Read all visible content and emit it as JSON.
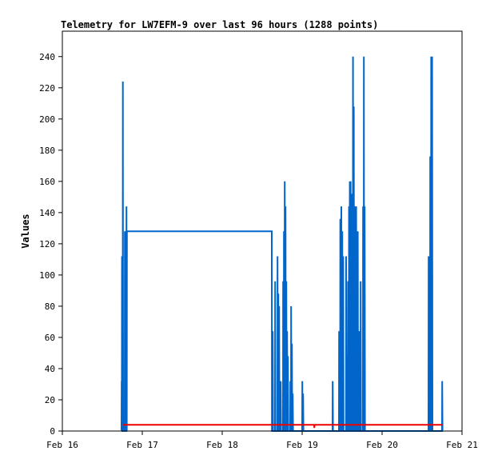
{
  "chart_data": {
    "type": "line",
    "title": "Telemetry for LW7EFM-9 over last 96 hours (1288 points)",
    "xlabel": "",
    "ylabel": "Values",
    "x_unit": "day",
    "xlim": [
      16.0,
      21.0
    ],
    "ylim": [
      0,
      255
    ],
    "x_ticks": [
      {
        "x": 16,
        "label": "Feb 16"
      },
      {
        "x": 17,
        "label": "Feb 17"
      },
      {
        "x": 18,
        "label": "Feb 18"
      },
      {
        "x": 19,
        "label": "Feb 19"
      },
      {
        "x": 20,
        "label": "Feb 20"
      },
      {
        "x": 21,
        "label": "Feb 21"
      }
    ],
    "y_ticks": [
      0,
      20,
      40,
      60,
      80,
      100,
      120,
      140,
      160,
      180,
      200,
      220,
      240
    ],
    "grid": false,
    "legend": "none",
    "series": [
      {
        "color": "#0066cc",
        "points": [
          [
            16.74,
            0
          ],
          [
            16.742,
            32
          ],
          [
            16.744,
            0
          ],
          [
            16.746,
            112
          ],
          [
            16.75,
            0
          ],
          [
            16.755,
            0
          ],
          [
            16.757,
            224
          ],
          [
            16.76,
            0
          ],
          [
            16.78,
            0
          ],
          [
            16.782,
            128
          ],
          [
            16.79,
            0
          ],
          [
            16.8,
            0
          ],
          [
            16.802,
            144
          ],
          [
            16.806,
            0
          ],
          [
            16.808,
            128
          ],
          [
            18.62,
            128
          ],
          [
            18.622,
            0
          ],
          [
            18.63,
            0
          ],
          [
            18.632,
            64
          ],
          [
            18.636,
            0
          ],
          [
            18.66,
            0
          ],
          [
            18.662,
            96
          ],
          [
            18.666,
            0
          ],
          [
            18.69,
            0
          ],
          [
            18.692,
            112
          ],
          [
            18.696,
            0
          ],
          [
            18.7,
            0
          ],
          [
            18.702,
            88
          ],
          [
            18.706,
            0
          ],
          [
            18.71,
            0
          ],
          [
            18.712,
            80
          ],
          [
            18.716,
            0
          ],
          [
            18.72,
            0
          ],
          [
            18.722,
            24
          ],
          [
            18.726,
            0
          ],
          [
            18.73,
            0
          ],
          [
            18.732,
            32
          ],
          [
            18.736,
            0
          ],
          [
            18.76,
            0
          ],
          [
            18.762,
            96
          ],
          [
            18.766,
            0
          ],
          [
            18.77,
            0
          ],
          [
            18.772,
            128
          ],
          [
            18.776,
            0
          ],
          [
            18.78,
            0
          ],
          [
            18.782,
            160
          ],
          [
            18.786,
            0
          ],
          [
            18.79,
            0
          ],
          [
            18.792,
            144
          ],
          [
            18.796,
            0
          ],
          [
            18.8,
            0
          ],
          [
            18.802,
            96
          ],
          [
            18.806,
            0
          ],
          [
            18.81,
            0
          ],
          [
            18.812,
            64
          ],
          [
            18.816,
            0
          ],
          [
            18.82,
            0
          ],
          [
            18.822,
            48
          ],
          [
            18.826,
            0
          ],
          [
            18.85,
            0
          ],
          [
            18.852,
            32
          ],
          [
            18.856,
            0
          ],
          [
            18.86,
            0
          ],
          [
            18.862,
            80
          ],
          [
            18.866,
            0
          ],
          [
            18.87,
            0
          ],
          [
            18.872,
            56
          ],
          [
            18.876,
            0
          ],
          [
            18.88,
            0
          ],
          [
            18.882,
            24
          ],
          [
            18.886,
            0
          ],
          [
            19.0,
            0
          ],
          [
            19.002,
            32
          ],
          [
            19.006,
            0
          ],
          [
            19.01,
            0
          ],
          [
            19.012,
            24
          ],
          [
            19.016,
            0
          ],
          [
            19.38,
            0
          ],
          [
            19.382,
            32
          ],
          [
            19.386,
            0
          ],
          [
            19.46,
            0
          ],
          [
            19.462,
            64
          ],
          [
            19.466,
            0
          ],
          [
            19.475,
            0
          ],
          [
            19.477,
            136
          ],
          [
            19.481,
            0
          ],
          [
            19.488,
            0
          ],
          [
            19.49,
            144
          ],
          [
            19.494,
            0
          ],
          [
            19.5,
            0
          ],
          [
            19.502,
            128
          ],
          [
            19.506,
            0
          ],
          [
            19.512,
            0
          ],
          [
            19.514,
            112
          ],
          [
            19.518,
            0
          ],
          [
            19.548,
            0
          ],
          [
            19.55,
            112
          ],
          [
            19.554,
            0
          ],
          [
            19.56,
            0
          ],
          [
            19.562,
            48
          ],
          [
            19.566,
            0
          ],
          [
            19.572,
            0
          ],
          [
            19.574,
            96
          ],
          [
            19.578,
            0
          ],
          [
            19.584,
            0
          ],
          [
            19.586,
            144
          ],
          [
            19.59,
            0
          ],
          [
            19.594,
            0
          ],
          [
            19.596,
            160
          ],
          [
            19.6,
            0
          ],
          [
            19.604,
            0
          ],
          [
            19.606,
            160
          ],
          [
            19.61,
            0
          ],
          [
            19.614,
            0
          ],
          [
            19.616,
            136
          ],
          [
            19.62,
            0
          ],
          [
            19.624,
            0
          ],
          [
            19.626,
            152
          ],
          [
            19.63,
            0
          ],
          [
            19.634,
            0
          ],
          [
            19.636,
            240
          ],
          [
            19.64,
            0
          ],
          [
            19.644,
            0
          ],
          [
            19.646,
            208
          ],
          [
            19.65,
            0
          ],
          [
            19.654,
            0
          ],
          [
            19.656,
            144
          ],
          [
            19.66,
            0
          ],
          [
            19.664,
            0
          ],
          [
            19.666,
            128
          ],
          [
            19.67,
            0
          ],
          [
            19.674,
            0
          ],
          [
            19.676,
            144
          ],
          [
            19.68,
            0
          ],
          [
            19.684,
            0
          ],
          [
            19.686,
            112
          ],
          [
            19.69,
            0
          ],
          [
            19.694,
            0
          ],
          [
            19.696,
            128
          ],
          [
            19.7,
            0
          ],
          [
            19.71,
            0
          ],
          [
            19.712,
            64
          ],
          [
            19.716,
            0
          ],
          [
            19.72,
            0
          ],
          [
            19.722,
            32
          ],
          [
            19.726,
            0
          ],
          [
            19.73,
            0
          ],
          [
            19.732,
            96
          ],
          [
            19.736,
            0
          ],
          [
            19.76,
            0
          ],
          [
            19.762,
            144
          ],
          [
            19.766,
            0
          ],
          [
            19.77,
            0
          ],
          [
            19.772,
            240
          ],
          [
            19.776,
            0
          ],
          [
            19.78,
            0
          ],
          [
            19.782,
            144
          ],
          [
            19.786,
            0
          ],
          [
            20.58,
            0
          ],
          [
            20.582,
            112
          ],
          [
            20.586,
            0
          ],
          [
            20.59,
            0
          ],
          [
            20.592,
            80
          ],
          [
            20.596,
            0
          ],
          [
            20.6,
            0
          ],
          [
            20.602,
            176
          ],
          [
            20.606,
            0
          ],
          [
            20.612,
            0
          ],
          [
            20.614,
            240
          ],
          [
            20.618,
            0
          ],
          [
            20.624,
            0
          ],
          [
            20.626,
            240
          ],
          [
            20.63,
            0
          ],
          [
            20.75,
            0
          ],
          [
            20.752,
            32
          ],
          [
            20.756,
            0
          ]
        ]
      },
      {
        "color": "#ee0000",
        "points": [
          [
            16.76,
            4
          ],
          [
            19.15,
            4
          ],
          [
            19.152,
            2
          ],
          [
            19.156,
            4
          ],
          [
            20.76,
            4
          ]
        ]
      },
      {
        "color": "#000000",
        "points": [
          [
            16.74,
            0
          ],
          [
            20.76,
            0
          ]
        ]
      }
    ]
  }
}
